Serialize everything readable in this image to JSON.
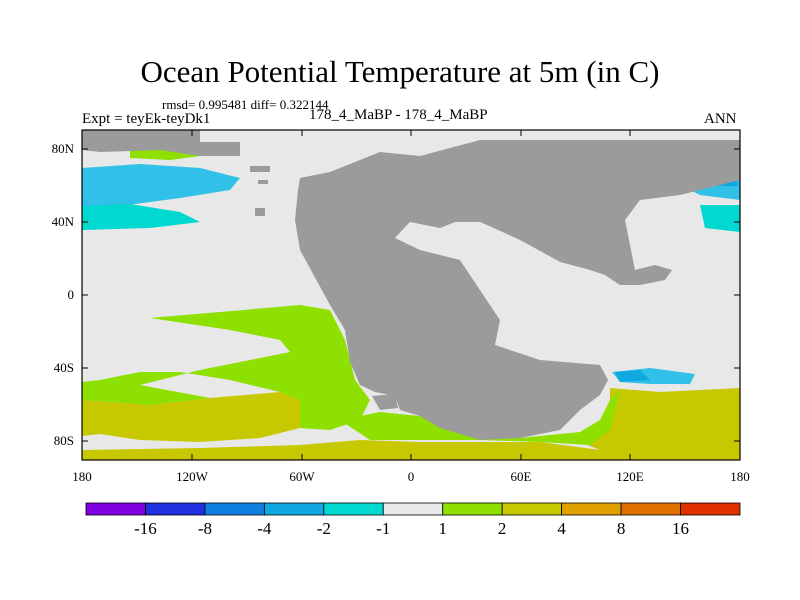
{
  "title": "Ocean Potential Temperature at 5m (in C)",
  "stats_line": "rmsd= 0.995481 diff= 0.322144",
  "experiment_label": "Expt = teyEk-teyDk1",
  "case_label": "178_4_MaBP - 178_4_MaBP",
  "season_label": "ANN",
  "colors": {
    "land": "#9b9b9b",
    "ocean_near_zero": "#e8e8e8",
    "green": "#8ee000",
    "olive": "#c8c800",
    "cyan": "#00d8d0",
    "light_blue": "#10a8e0",
    "sky_blue": "#30c0e8"
  },
  "axes": {
    "y_ticks": [
      "80N",
      "40N",
      "0",
      "40S",
      "80S"
    ],
    "x_ticks": [
      "180",
      "120W",
      "60W",
      "0",
      "60E",
      "120E",
      "180"
    ]
  },
  "colorbar": {
    "colors": [
      "#8000e0",
      "#2030e0",
      "#1080e0",
      "#10a8e0",
      "#00d8d0",
      "#e8e8e8",
      "#8ee000",
      "#c8c800",
      "#e0a000",
      "#e07000",
      "#e03000"
    ],
    "labels": [
      "-16",
      "-8",
      "-4",
      "-2",
      "-1",
      "1",
      "2",
      "4",
      "8",
      "16"
    ]
  }
}
